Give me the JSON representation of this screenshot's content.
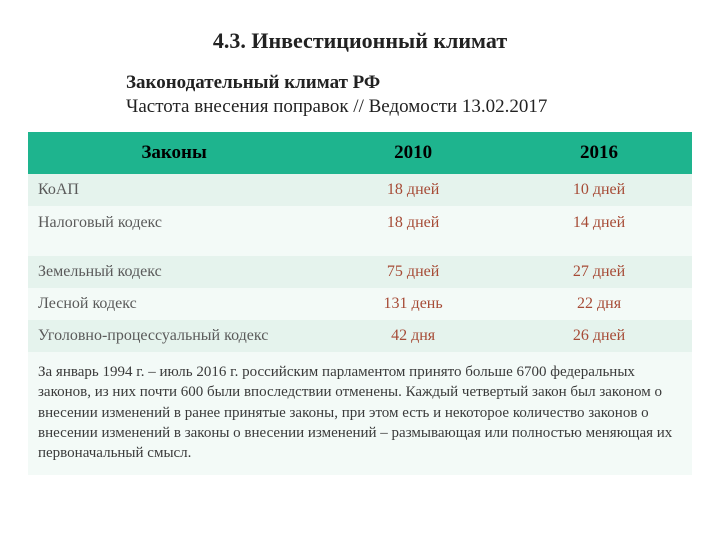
{
  "title": "4.3. Инвестиционный климат",
  "subtitle_bold": "Законодательный климат  РФ",
  "subtitle_plain": "Частота внесения поправок // Ведомости 13.02.2017",
  "table": {
    "header_bg": "#1eb48e",
    "header_fg": "#000000",
    "row_bg_light": "#e5f3ed",
    "row_bg_lighter": "#f3faf7",
    "val_text_color": "#a64b36",
    "law_text_color": "#5a5a5a",
    "col_widths": [
      "44%",
      "28%",
      "28%"
    ],
    "columns": [
      "Законы",
      "2010",
      "2016"
    ],
    "rows": [
      {
        "law": "КоАП",
        "y2010": "18 дней",
        "y2016": "10 дней",
        "tall": false
      },
      {
        "law": "Налоговый кодекс",
        "y2010": "18 дней",
        "y2016": "14 дней",
        "tall": true
      },
      {
        "law": "Земельный кодекс",
        "y2010": "75 дней",
        "y2016": "27 дней",
        "tall": false
      },
      {
        "law": "Лесной кодекс",
        "y2010": "131 день",
        "y2016": "22 дня",
        "tall": false
      },
      {
        "law": "Уголовно-процессуальный кодекс",
        "y2010": "42 дня",
        "y2016": "26 дней",
        "tall": false
      }
    ],
    "footnote": "За январь 1994 г. – июль 2016 г. российским парламентом принято больше 6700 федеральных законов, из них почти 600 были впоследствии отменены. Каждый четвертый закон был законом о внесении изменений в ранее принятые законы, при этом есть и некоторое количество законов о внесении изменений в законы о внесении изменений –  размывающая или полностью меняющая их первоначальный смысл.",
    "footnote_bg": "#f3faf7",
    "footnote_fg": "#3a3a3a"
  }
}
